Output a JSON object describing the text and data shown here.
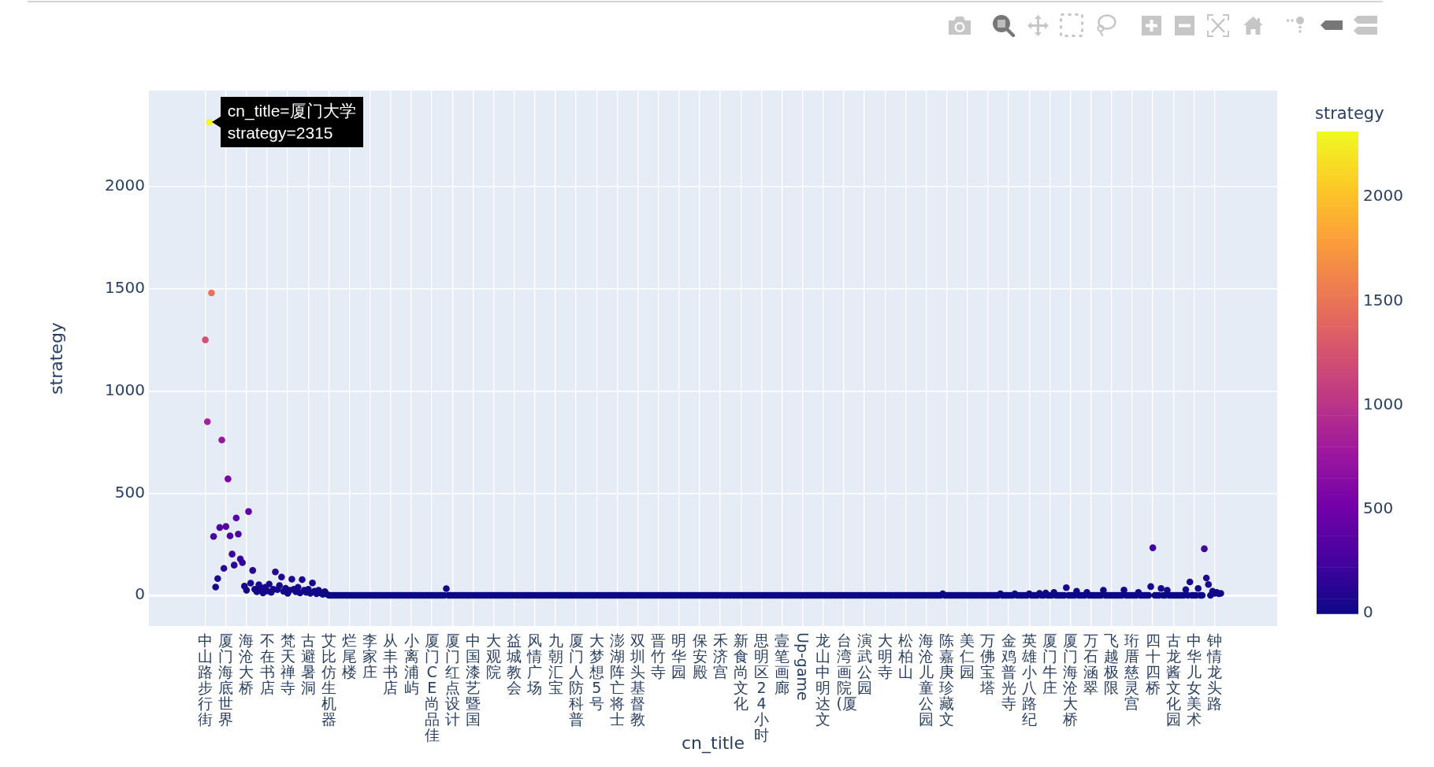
{
  "chart_data": {
    "type": "scatter",
    "xlabel": "cn_title",
    "ylabel": "strategy",
    "clabel": "strategy",
    "marker": "circle",
    "grid": true,
    "ylim": [
      -150,
      2470
    ],
    "yticks": [
      0,
      500,
      1000,
      1500,
      2000
    ],
    "clim": [
      0,
      2315
    ],
    "cticks": [
      0,
      500,
      1000,
      1500,
      2000
    ],
    "annotations": [
      "cn_title=厦门大学\nstrategy=2315"
    ],
    "categories": [
      "中山路步行街",
      null,
      null,
      null,
      null,
      null,
      null,
      null,
      null,
      null,
      "厦门海底世界",
      null,
      null,
      null,
      null,
      null,
      null,
      null,
      null,
      null,
      "海沧大桥",
      null,
      null,
      null,
      null,
      null,
      null,
      null,
      null,
      null,
      "不在书店",
      null,
      null,
      null,
      null,
      null,
      null,
      null,
      null,
      null,
      "梵天禅寺",
      null,
      null,
      null,
      null,
      null,
      null,
      null,
      null,
      null,
      "古避暑洞",
      null,
      null,
      null,
      null,
      null,
      null,
      null,
      null,
      null,
      "艾比仿生机器",
      null,
      null,
      null,
      null,
      null,
      null,
      null,
      null,
      null,
      "烂尾楼",
      null,
      null,
      null,
      null,
      null,
      null,
      null,
      null,
      null,
      "李家庄",
      null,
      null,
      null,
      null,
      null,
      null,
      null,
      null,
      null,
      "从丰书店",
      null,
      null,
      null,
      null,
      null,
      null,
      null,
      null,
      null,
      "小离浦屿",
      null,
      null,
      null,
      null,
      null,
      null,
      null,
      null,
      null,
      "厦门CE尚品佳",
      null,
      null,
      null,
      null,
      null,
      null,
      null,
      null,
      null,
      "厦门红点设计",
      null,
      null,
      null,
      null,
      null,
      null,
      null,
      null,
      null,
      "中国漆艺暨国",
      null,
      null,
      null,
      null,
      null,
      null,
      null,
      null,
      null,
      "大观院",
      null,
      null,
      null,
      null,
      null,
      null,
      null,
      null,
      null,
      "益城教会",
      null,
      null,
      null,
      null,
      null,
      null,
      null,
      null,
      null,
      "风情广场",
      null,
      null,
      null,
      null,
      null,
      null,
      null,
      null,
      null,
      "九朝汇宝",
      null,
      null,
      null,
      null,
      null,
      null,
      null,
      null,
      null,
      "厦门人防科普",
      null,
      null,
      null,
      null,
      null,
      null,
      null,
      null,
      null,
      "大梦想5号",
      null,
      null,
      null,
      null,
      null,
      null,
      null,
      null,
      null,
      "澎湖阵亡将士",
      null,
      null,
      null,
      null,
      null,
      null,
      null,
      null,
      null,
      "双圳头基督教",
      null,
      null,
      null,
      null,
      null,
      null,
      null,
      null,
      null,
      "晋竹寺",
      null,
      null,
      null,
      null,
      null,
      null,
      null,
      null,
      null,
      "明华园",
      null,
      null,
      null,
      null,
      null,
      null,
      null,
      null,
      null,
      "保安殿",
      null,
      null,
      null,
      null,
      null,
      null,
      null,
      null,
      null,
      "禾济宫",
      null,
      null,
      null,
      null,
      null,
      null,
      null,
      null,
      null,
      "新食尚文化",
      null,
      null,
      null,
      null,
      null,
      null,
      null,
      null,
      null,
      "思明区24小时",
      null,
      null,
      null,
      null,
      null,
      null,
      null,
      null,
      null,
      "壹笔画廊",
      null,
      null,
      null,
      null,
      null,
      null,
      null,
      null,
      null,
      "Up-game",
      null,
      null,
      null,
      null,
      null,
      null,
      null,
      null,
      null,
      "龙山中明达文",
      null,
      null,
      null,
      null,
      null,
      null,
      null,
      null,
      null,
      "台湾画院(厦",
      null,
      null,
      null,
      null,
      null,
      null,
      null,
      null,
      null,
      "演武公园",
      null,
      null,
      null,
      null,
      null,
      null,
      null,
      null,
      null,
      "大明寺",
      null,
      null,
      null,
      null,
      null,
      null,
      null,
      null,
      null,
      "松柏山",
      null,
      null,
      null,
      null,
      null,
      null,
      null,
      null,
      null,
      "海沧儿童公园",
      null,
      null,
      null,
      null,
      null,
      null,
      null,
      null,
      null,
      "陈嘉庚珍藏文",
      null,
      null,
      null,
      null,
      null,
      null,
      null,
      null,
      null,
      "美仁园",
      null,
      null,
      null,
      null,
      null,
      null,
      null,
      null,
      null,
      "万佛宝塔",
      null,
      null,
      null,
      null,
      null,
      null,
      null,
      null,
      null,
      "金鸡普光寺",
      null,
      null,
      null,
      null,
      null,
      null,
      null,
      null,
      null,
      "英雄小八路纪",
      null,
      null,
      null,
      null,
      null,
      null,
      null,
      null,
      null,
      "厦门牛庄",
      null,
      null,
      null,
      null,
      null,
      null,
      null,
      null,
      null,
      "厦门海沧大桥",
      null,
      null,
      null,
      null,
      null,
      null,
      null,
      null,
      null,
      "万石涵翠",
      null,
      null,
      null,
      null,
      null,
      null,
      null,
      null,
      null,
      "飞越极限",
      null,
      null,
      null,
      null,
      null,
      null,
      null,
      null,
      null,
      "珩厝慈灵宫",
      null,
      null,
      null,
      null,
      null,
      null,
      null,
      null,
      null,
      "四十四桥",
      null,
      null,
      null,
      null,
      null,
      null,
      null,
      null,
      null,
      "古龙酱文化园",
      null,
      null,
      null,
      null,
      null,
      null,
      null,
      null,
      null,
      "中华儿女美术",
      null,
      null,
      null,
      null,
      null,
      null,
      null,
      null,
      null,
      "钟情龙头路",
      null,
      null,
      null
    ],
    "values": [
      1250,
      850,
      2315,
      1480,
      288,
      41,
      82,
      332,
      760,
      132,
      337,
      570,
      291,
      202,
      148,
      379,
      300,
      178,
      160,
      45,
      25,
      410,
      60,
      122,
      30,
      18,
      52,
      35,
      12,
      40,
      22,
      55,
      15,
      30,
      115,
      28,
      48,
      90,
      20,
      35,
      10,
      25,
      79,
      30,
      18,
      40,
      12,
      77,
      25,
      15,
      30,
      10,
      61,
      20,
      8,
      25,
      12,
      5,
      18,
      6,
      0,
      0,
      0,
      0,
      0,
      0,
      0,
      0,
      0,
      0,
      0,
      0,
      0,
      0,
      0,
      0,
      0,
      0,
      0,
      0,
      0,
      0,
      0,
      0,
      0,
      0,
      0,
      0,
      0,
      0,
      0,
      0,
      0,
      0,
      0,
      0,
      0,
      0,
      0,
      0,
      0,
      0,
      0,
      0,
      0,
      0,
      0,
      0,
      0,
      0,
      0,
      0,
      0,
      0,
      0,
      0,
      0,
      33,
      0,
      0,
      0,
      0,
      0,
      0,
      0,
      0,
      0,
      0,
      0,
      0,
      0,
      0,
      0,
      0,
      0,
      0,
      0,
      0,
      0,
      0,
      0,
      0,
      0,
      0,
      0,
      0,
      0,
      0,
      0,
      0,
      0,
      0,
      0,
      0,
      0,
      0,
      0,
      0,
      0,
      0,
      0,
      0,
      0,
      0,
      0,
      0,
      0,
      0,
      0,
      0,
      0,
      0,
      0,
      0,
      0,
      0,
      0,
      0,
      0,
      0,
      0,
      0,
      0,
      0,
      0,
      0,
      0,
      0,
      0,
      0,
      0,
      0,
      0,
      0,
      0,
      0,
      0,
      0,
      0,
      0,
      0,
      0,
      0,
      0,
      0,
      0,
      0,
      0,
      0,
      0,
      0,
      0,
      0,
      0,
      0,
      0,
      0,
      0,
      0,
      0,
      0,
      0,
      0,
      0,
      0,
      0,
      0,
      0,
      0,
      0,
      0,
      0,
      0,
      0,
      0,
      0,
      0,
      0,
      0,
      0,
      0,
      0,
      0,
      0,
      0,
      0,
      0,
      0,
      0,
      0,
      0,
      0,
      0,
      0,
      0,
      0,
      0,
      0,
      0,
      0,
      0,
      0,
      0,
      0,
      0,
      0,
      0,
      0,
      0,
      0,
      0,
      0,
      0,
      0,
      0,
      0,
      0,
      0,
      0,
      0,
      0,
      0,
      0,
      0,
      0,
      0,
      0,
      0,
      0,
      0,
      0,
      0,
      0,
      0,
      0,
      0,
      0,
      0,
      0,
      0,
      0,
      0,
      0,
      0,
      0,
      0,
      0,
      0,
      0,
      0,
      0,
      0,
      0,
      0,
      0,
      0,
      0,
      0,
      0,
      0,
      0,
      0,
      0,
      0,
      0,
      0,
      0,
      0,
      0,
      0,
      0,
      0,
      0,
      0,
      0,
      0,
      0,
      0,
      0,
      0,
      0,
      0,
      0,
      0,
      0,
      0,
      0,
      0,
      0,
      0,
      0,
      0,
      0,
      0,
      0,
      0,
      0,
      0,
      8,
      0,
      0,
      0,
      0,
      0,
      0,
      0,
      0,
      0,
      0,
      0,
      0,
      0,
      0,
      0,
      0,
      0,
      0,
      0,
      0,
      0,
      0,
      0,
      0,
      0,
      0,
      0,
      8,
      0,
      0,
      0,
      0,
      0,
      0,
      8,
      0,
      0,
      0,
      0,
      0,
      0,
      8,
      0,
      0,
      0,
      0,
      10,
      0,
      0,
      12,
      0,
      0,
      0,
      15,
      0,
      0,
      0,
      0,
      0,
      38,
      0,
      0,
      0,
      0,
      20,
      0,
      0,
      0,
      0,
      15,
      0,
      0,
      0,
      0,
      0,
      0,
      0,
      25,
      0,
      0,
      0,
      0,
      0,
      0,
      0,
      0,
      0,
      26,
      0,
      0,
      0,
      0,
      0,
      0,
      15,
      0,
      0,
      0,
      0,
      0,
      43,
      233,
      0,
      0,
      0,
      34,
      0,
      0,
      25,
      0,
      0,
      0,
      0,
      0,
      0,
      0,
      0,
      28,
      0,
      66,
      0,
      0,
      0,
      34,
      0,
      0,
      228,
      85,
      53,
      0,
      20,
      10,
      15,
      8,
      10
    ],
    "cvalues": [
      1250,
      850,
      2315,
      1480,
      288,
      41,
      82,
      332,
      760,
      132,
      337,
      570,
      291,
      202,
      148,
      379,
      300,
      178,
      160,
      45,
      25,
      410,
      60,
      122,
      30,
      18,
      52,
      35,
      12,
      40,
      22,
      55,
      15,
      30,
      115,
      28,
      48,
      90,
      20,
      35,
      10,
      25,
      79,
      30,
      18,
      40,
      12,
      77,
      25,
      15,
      30,
      10,
      61,
      20,
      8,
      25,
      12,
      5,
      18,
      6,
      0,
      0,
      0,
      0,
      0,
      0,
      0,
      0,
      0,
      0,
      0,
      0,
      0,
      0,
      0,
      0,
      0,
      0,
      0,
      0,
      0,
      0,
      0,
      0,
      0,
      0,
      0,
      0,
      0,
      0,
      0,
      0,
      0,
      0,
      0,
      0,
      0,
      0,
      0,
      0,
      0,
      0,
      0,
      0,
      0,
      0,
      0,
      0,
      0,
      0,
      0,
      0,
      0,
      0,
      0,
      0,
      0,
      33,
      0,
      0,
      0,
      0,
      0,
      0,
      0,
      0,
      0,
      0,
      0,
      0,
      0,
      0,
      0,
      0,
      0,
      0,
      0,
      0,
      0,
      0,
      0,
      0,
      0,
      0,
      0,
      0,
      0,
      0,
      0,
      0,
      0,
      0,
      0,
      0,
      0,
      0,
      0,
      0,
      0,
      0,
      0,
      0,
      0,
      0,
      0,
      0,
      0,
      0,
      0,
      0,
      0,
      0,
      0,
      0,
      0,
      0,
      0,
      0,
      0,
      0,
      0,
      0,
      0,
      0,
      0,
      0,
      0,
      0,
      0,
      0,
      0,
      0,
      0,
      0,
      0,
      0,
      0,
      0,
      0,
      0,
      0,
      0,
      0,
      0,
      0,
      0,
      0,
      0,
      0,
      0,
      0,
      0,
      0,
      0,
      0,
      0,
      0,
      0,
      0,
      0,
      0,
      0,
      0,
      0,
      0,
      0,
      0,
      0,
      0,
      0,
      0,
      0,
      0,
      0,
      0,
      0,
      0,
      0,
      0,
      0,
      0,
      0,
      0,
      0,
      0,
      0,
      0,
      0,
      0,
      0,
      0,
      0,
      0,
      0,
      0,
      0,
      0,
      0,
      0,
      0,
      0,
      0,
      0,
      0,
      0,
      0,
      0,
      0,
      0,
      0,
      0,
      0,
      0,
      0,
      0,
      0,
      0,
      0,
      0,
      0,
      0,
      0,
      0,
      0,
      0,
      0,
      0,
      0,
      0,
      0,
      0,
      0,
      0,
      0,
      0,
      0,
      0,
      0,
      0,
      0,
      0,
      0,
      0,
      0,
      0,
      0,
      0,
      0,
      0,
      0,
      0,
      0,
      0,
      0,
      0,
      0,
      0,
      0,
      0,
      0,
      0,
      0,
      0,
      0,
      0,
      0,
      0,
      0,
      0,
      0,
      0,
      0,
      0,
      0,
      0,
      0,
      0,
      0,
      0,
      0,
      0,
      0,
      0,
      0,
      0,
      0,
      0,
      0,
      0,
      0,
      0,
      0,
      0,
      0,
      0,
      0,
      0,
      0,
      8,
      0,
      0,
      0,
      0,
      0,
      0,
      0,
      0,
      0,
      0,
      0,
      0,
      0,
      0,
      0,
      0,
      0,
      0,
      0,
      0,
      0,
      0,
      0,
      0,
      0,
      0,
      0,
      8,
      0,
      0,
      0,
      0,
      0,
      0,
      8,
      0,
      0,
      0,
      0,
      0,
      0,
      8,
      0,
      0,
      0,
      0,
      10,
      0,
      0,
      12,
      0,
      0,
      0,
      15,
      0,
      0,
      0,
      0,
      0,
      38,
      0,
      0,
      0,
      0,
      20,
      0,
      0,
      0,
      0,
      15,
      0,
      0,
      0,
      0,
      0,
      0,
      0,
      25,
      0,
      0,
      0,
      0,
      0,
      0,
      0,
      0,
      0,
      26,
      0,
      0,
      0,
      0,
      0,
      0,
      15,
      0,
      0,
      0,
      0,
      0,
      43,
      233,
      0,
      0,
      0,
      34,
      0,
      0,
      25,
      0,
      0,
      0,
      0,
      0,
      0,
      0,
      0,
      28,
      0,
      66,
      0,
      0,
      0,
      34,
      0,
      0,
      228,
      85,
      53,
      0,
      20,
      10,
      15,
      8,
      10
    ]
  }
}
